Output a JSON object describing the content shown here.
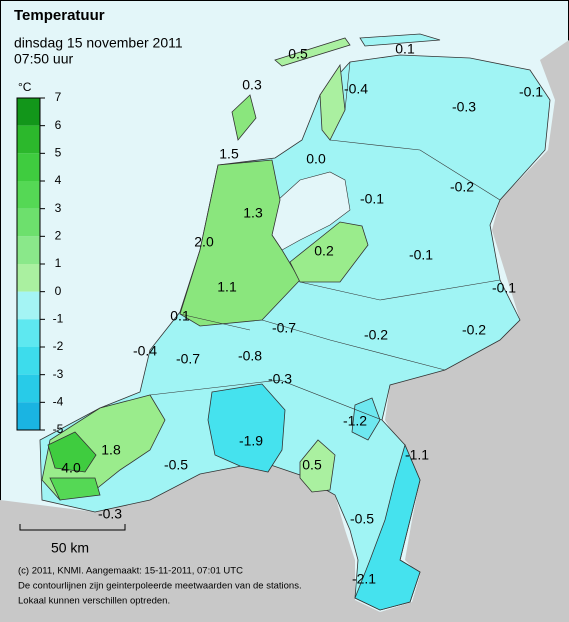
{
  "header": {
    "title": "Temperatuur",
    "date": "dinsdag 15 november 2011",
    "time": "07:50 uur"
  },
  "legend": {
    "unit": "°C",
    "ticks": [
      7,
      6,
      5,
      4,
      3,
      2,
      1,
      0,
      -1,
      -2,
      -3,
      -4,
      -5
    ]
  },
  "stations": [
    {
      "label": "0.5"
    },
    {
      "label": "0.1"
    },
    {
      "label": "-0.4"
    },
    {
      "label": "-0.1"
    },
    {
      "label": "0.3"
    },
    {
      "label": "-0.3"
    },
    {
      "label": "1.5"
    },
    {
      "label": "0.0"
    },
    {
      "label": "-0.2"
    },
    {
      "label": "-0.1"
    },
    {
      "label": "1.3"
    },
    {
      "label": "2.0"
    },
    {
      "label": "0.2"
    },
    {
      "label": "-0.1"
    },
    {
      "label": "-0.1"
    },
    {
      "label": "1.1"
    },
    {
      "label": "0.1"
    },
    {
      "label": "-0.7"
    },
    {
      "label": "-0.2"
    },
    {
      "label": "-0.2"
    },
    {
      "label": "-0.4"
    },
    {
      "label": "-0.7"
    },
    {
      "label": "-0.8"
    },
    {
      "label": "-0.3"
    },
    {
      "label": "-1.2"
    },
    {
      "label": "-1.9"
    },
    {
      "label": "1.8"
    },
    {
      "label": "-1.1"
    },
    {
      "label": "4.0"
    },
    {
      "label": "-0.5"
    },
    {
      "label": "0.5"
    },
    {
      "label": "-0.3"
    },
    {
      "label": "-0.5"
    },
    {
      "label": "-2.1"
    }
  ],
  "scale_bar": "50 km",
  "footer": [
    "(c) 2011, KNMI. Aangemaakt: 15-11-2011, 07:01 UTC",
    "De contourlijnen zijn geinterpoleerde meetwaarden van de stations.",
    "Lokaal kunnen verschillen optreden."
  ]
}
